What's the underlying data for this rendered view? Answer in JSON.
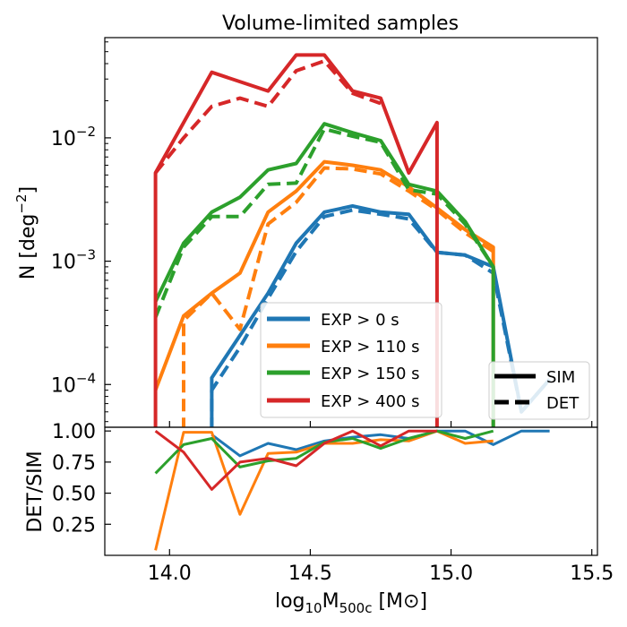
{
  "chart_data": [
    {
      "type": "line",
      "title": "Volume-limited samples",
      "ylabel": "N [deg",
      "ylabel_sup": "−2",
      "ylabel_end": "]",
      "yscale": "log",
      "ylim": [
        4.5e-05,
        0.065
      ],
      "xlim": [
        13.77,
        15.52
      ],
      "yticks": [
        {
          "value": 0.01,
          "base": "10",
          "exp": "−2"
        },
        {
          "value": 0.001,
          "base": "10",
          "exp": "−3"
        },
        {
          "value": 0.0001,
          "base": "10",
          "exp": "−4"
        }
      ],
      "series": [
        {
          "name": "EXP > 0 s",
          "color": "#1f77b4",
          "kind": "SIM",
          "x": [
            14.15,
            14.15,
            14.25,
            14.35,
            14.45,
            14.55,
            14.65,
            14.75,
            14.85,
            14.95,
            15.05,
            15.15,
            15.25,
            15.35
          ],
          "y": [
            3e-05,
            0.000113,
            0.00025,
            0.00055,
            0.0014,
            0.0025,
            0.0028,
            0.0025,
            0.0024,
            0.00118,
            0.00112,
            0.0009,
            6e-05,
            0.00011
          ]
        },
        {
          "name": "EXP > 0 s",
          "color": "#1f77b4",
          "kind": "DET",
          "x": [
            14.15,
            14.15,
            14.25,
            14.35,
            14.45,
            14.55,
            14.65,
            14.75,
            14.85,
            14.95,
            15.05,
            15.15,
            15.25,
            15.35
          ],
          "y": [
            3e-05,
            9e-05,
            0.0002,
            0.0005,
            0.0012,
            0.0023,
            0.0026,
            0.0024,
            0.0022,
            0.00118,
            0.00112,
            0.0008,
            6e-05,
            0.00011
          ]
        },
        {
          "name": "EXP > 110 s",
          "color": "#ff7f0e",
          "kind": "SIM",
          "x": [
            13.95,
            14.05,
            14.15,
            14.25,
            14.35,
            14.45,
            14.55,
            14.65,
            14.75,
            14.85,
            14.95,
            15.05,
            15.15,
            15.15
          ],
          "y": [
            9e-05,
            0.00036,
            0.00055,
            0.0008,
            0.0025,
            0.0037,
            0.0064,
            0.006,
            0.0055,
            0.004,
            0.0027,
            0.0018,
            0.0013,
            3e-05
          ]
        },
        {
          "name": "EXP > 110 s",
          "color": "#ff7f0e",
          "kind": "DET",
          "x": [
            14.05,
            14.05,
            14.15,
            14.25,
            14.35,
            14.45,
            14.55,
            14.65,
            14.75,
            14.85,
            14.95,
            15.05,
            15.15
          ],
          "y": [
            3e-05,
            0.00033,
            0.00055,
            0.00028,
            0.002,
            0.003,
            0.0057,
            0.0056,
            0.0051,
            0.0037,
            0.0026,
            0.0017,
            0.0012
          ]
        },
        {
          "name": "EXP > 150 s",
          "color": "#2ca02c",
          "kind": "SIM",
          "x": [
            13.95,
            14.05,
            14.15,
            14.25,
            14.35,
            14.45,
            14.55,
            14.65,
            14.75,
            14.85,
            14.95,
            15.05,
            15.15,
            15.15
          ],
          "y": [
            0.00047,
            0.0014,
            0.0025,
            0.0033,
            0.0055,
            0.0062,
            0.013,
            0.011,
            0.0095,
            0.0042,
            0.0037,
            0.0021,
            0.0009,
            3e-05
          ]
        },
        {
          "name": "EXP > 150 s",
          "color": "#2ca02c",
          "kind": "DET",
          "x": [
            13.95,
            14.05,
            14.15,
            14.25,
            14.35,
            14.45,
            14.55,
            14.65,
            14.75,
            14.85,
            14.95,
            15.05,
            15.15
          ],
          "y": [
            0.00035,
            0.0013,
            0.0023,
            0.0023,
            0.0042,
            0.0043,
            0.0118,
            0.0103,
            0.0092,
            0.0038,
            0.0035,
            0.002,
            0.0009
          ]
        },
        {
          "name": "EXP > 400 s",
          "color": "#d62728",
          "kind": "SIM",
          "x": [
            13.95,
            13.95,
            14.15,
            14.35,
            14.45,
            14.55,
            14.65,
            14.75,
            14.85,
            14.95,
            14.95
          ],
          "y": [
            3e-05,
            0.0052,
            0.034,
            0.024,
            0.047,
            0.047,
            0.024,
            0.021,
            0.0052,
            0.0133,
            3e-05
          ]
        },
        {
          "name": "EXP > 400 s",
          "color": "#d62728",
          "kind": "DET",
          "x": [
            13.95,
            14.05,
            14.15,
            14.25,
            14.35,
            14.45,
            14.55,
            14.65,
            14.75
          ],
          "y": [
            0.0052,
            0.01,
            0.018,
            0.021,
            0.018,
            0.035,
            0.042,
            0.023,
            0.019
          ]
        }
      ],
      "legend": {
        "placement": "lower-center",
        "entries": [
          {
            "label": "EXP > 0 s",
            "color": "#1f77b4"
          },
          {
            "label": "EXP > 110 s",
            "color": "#ff7f0e"
          },
          {
            "label": "EXP > 150 s",
            "color": "#2ca02c"
          },
          {
            "label": "EXP > 400 s",
            "color": "#d62728"
          }
        ]
      },
      "style_legend": {
        "placement": "lower-right",
        "entries": [
          {
            "label": "SIM",
            "style": "solid"
          },
          {
            "label": "DET",
            "style": "dashed"
          }
        ]
      }
    },
    {
      "type": "line",
      "ylabel": "DET/SIM",
      "ylim": [
        0.0,
        1.03
      ],
      "yticks": [
        "1.00",
        "0.75",
        "0.50",
        "0.25"
      ],
      "xlabel": "log",
      "xlabel_sub": "10",
      "xlabel_main": "M",
      "xlabel_sub2": "500c",
      "xlabel_unit": " [M⊙]",
      "xticks": [
        "14.0",
        "14.5",
        "15.0",
        "15.5"
      ],
      "series": [
        {
          "name": "EXP > 0 s",
          "color": "#1f77b4",
          "x": [
            14.15,
            14.25,
            14.35,
            14.45,
            14.55,
            14.65,
            14.75,
            14.85,
            14.95,
            15.05,
            15.15,
            15.25,
            15.35
          ],
          "y": [
            0.97,
            0.8,
            0.9,
            0.85,
            0.92,
            0.95,
            0.97,
            0.94,
            1.0,
            1.0,
            0.89,
            1.0,
            1.0
          ]
        },
        {
          "name": "EXP > 110 s",
          "color": "#ff7f0e",
          "x": [
            13.95,
            14.05,
            14.15,
            14.25,
            14.35,
            14.45,
            14.55,
            14.65,
            14.75,
            14.85,
            14.95,
            15.05,
            15.15
          ],
          "y": [
            0.04,
            0.99,
            0.99,
            0.33,
            0.82,
            0.83,
            0.9,
            0.9,
            0.93,
            0.92,
            1.0,
            0.9,
            0.92
          ]
        },
        {
          "name": "EXP > 150 s",
          "color": "#2ca02c",
          "x": [
            13.95,
            14.05,
            14.15,
            14.25,
            14.35,
            14.45,
            14.55,
            14.65,
            14.75,
            14.85,
            14.95,
            15.05,
            15.15
          ],
          "y": [
            0.66,
            0.89,
            0.94,
            0.71,
            0.76,
            0.78,
            0.91,
            0.94,
            0.86,
            0.94,
            1.0,
            0.94,
            1.0
          ]
        },
        {
          "name": "EXP > 400 s",
          "color": "#d62728",
          "x": [
            13.95,
            14.05,
            14.15,
            14.25,
            14.35,
            14.45,
            14.55,
            14.65,
            14.75,
            14.85,
            14.95
          ],
          "y": [
            1.0,
            0.83,
            0.53,
            0.75,
            0.78,
            0.72,
            0.9,
            1.0,
            0.88,
            1.0,
            1.0
          ]
        }
      ]
    }
  ]
}
